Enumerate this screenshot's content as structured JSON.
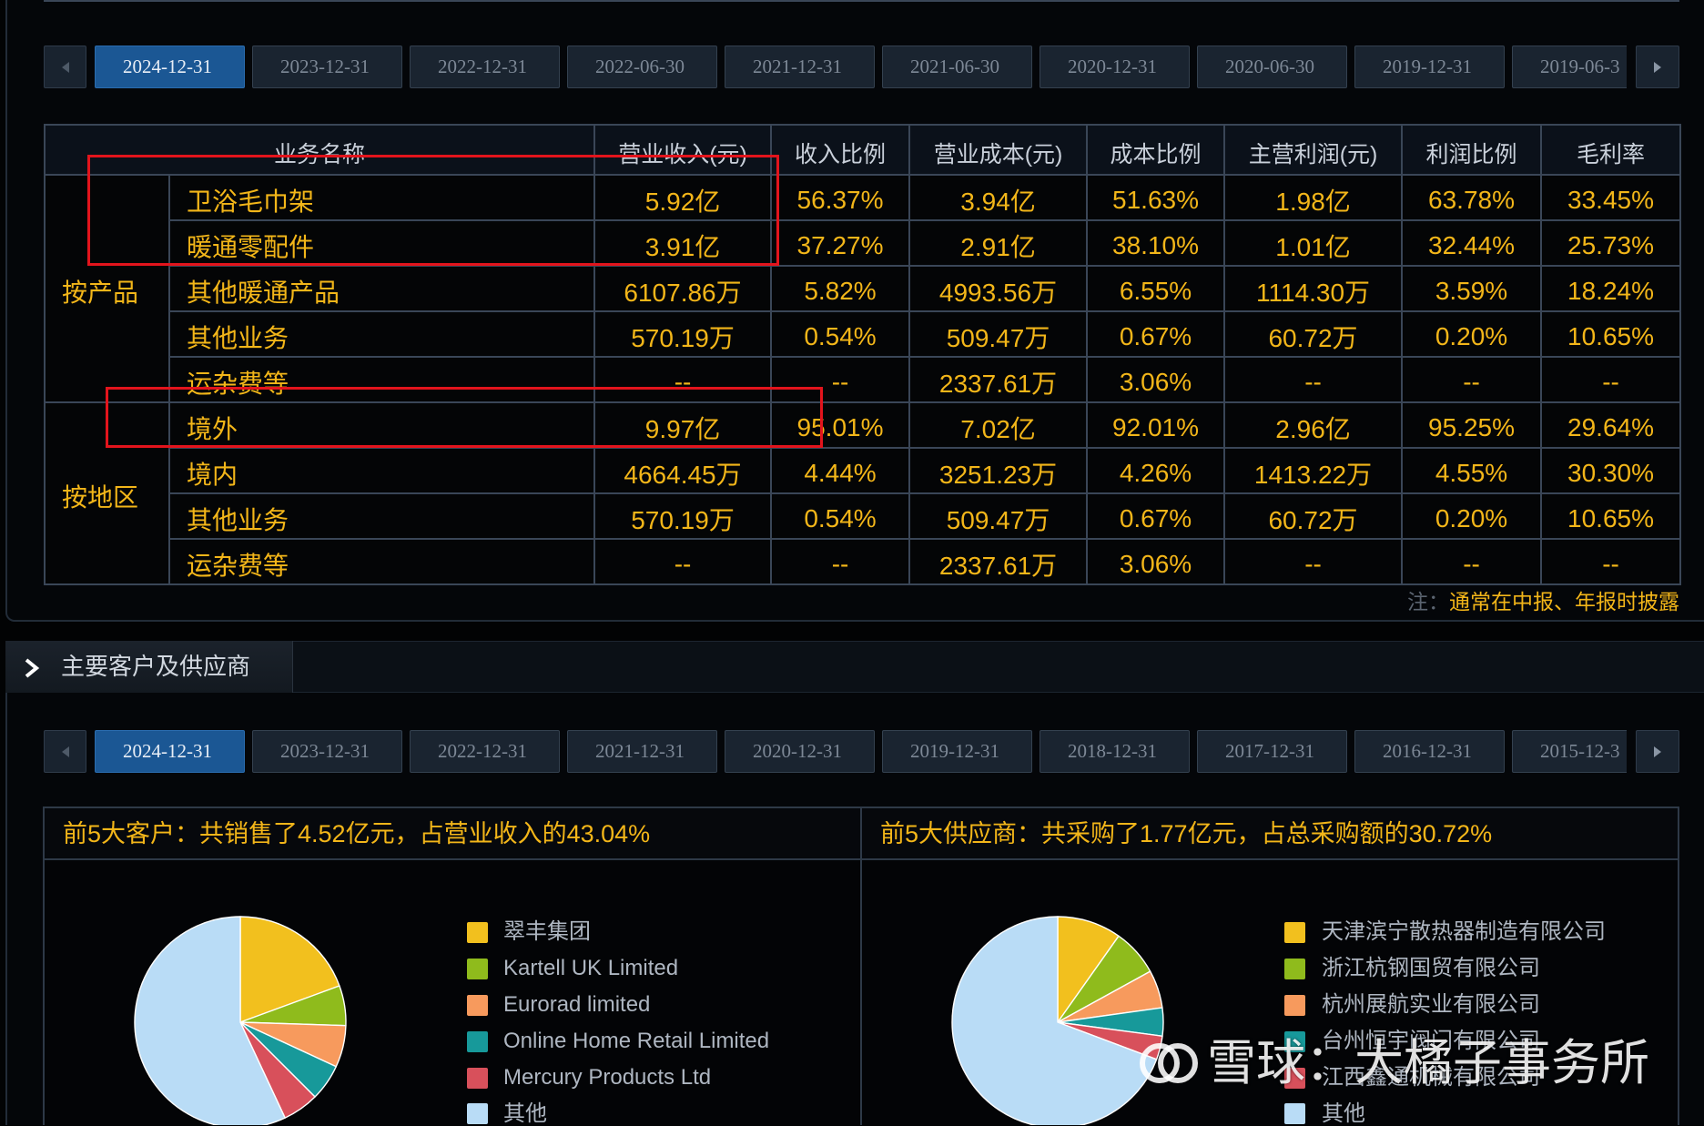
{
  "top_tabs": {
    "dates": [
      "2024-12-31",
      "2023-12-31",
      "2022-12-31",
      "2022-06-30",
      "2021-12-31",
      "2021-06-30",
      "2020-12-31",
      "2020-06-30",
      "2019-12-31",
      "2019-06-3"
    ],
    "active": "2024-12-31"
  },
  "table": {
    "headers": {
      "name": "业务名称",
      "revenue": "营业收入(元)",
      "revenue_ratio": "收入比例",
      "cost": "营业成本(元)",
      "cost_ratio": "成本比例",
      "profit": "主营利润(元)",
      "profit_ratio": "利润比例",
      "gross_margin": "毛利率"
    },
    "groups": [
      {
        "label": "按产品",
        "rows": [
          {
            "name": "卫浴毛巾架",
            "revenue": "5.92亿",
            "revenue_ratio": "56.37%",
            "cost": "3.94亿",
            "cost_ratio": "51.63%",
            "profit": "1.98亿",
            "profit_ratio": "63.78%",
            "gross_margin": "33.45%"
          },
          {
            "name": "暖通零配件",
            "revenue": "3.91亿",
            "revenue_ratio": "37.27%",
            "cost": "2.91亿",
            "cost_ratio": "38.10%",
            "profit": "1.01亿",
            "profit_ratio": "32.44%",
            "gross_margin": "25.73%"
          },
          {
            "name": "其他暖通产品",
            "revenue": "6107.86万",
            "revenue_ratio": "5.82%",
            "cost": "4993.56万",
            "cost_ratio": "6.55%",
            "profit": "1114.30万",
            "profit_ratio": "3.59%",
            "gross_margin": "18.24%"
          },
          {
            "name": "其他业务",
            "revenue": "570.19万",
            "revenue_ratio": "0.54%",
            "cost": "509.47万",
            "cost_ratio": "0.67%",
            "profit": "60.72万",
            "profit_ratio": "0.20%",
            "gross_margin": "10.65%"
          },
          {
            "name": "运杂费等",
            "revenue": "--",
            "revenue_ratio": "--",
            "cost": "2337.61万",
            "cost_ratio": "3.06%",
            "profit": "--",
            "profit_ratio": "--",
            "gross_margin": "--"
          }
        ]
      },
      {
        "label": "按地区",
        "rows": [
          {
            "name": "境外",
            "revenue": "9.97亿",
            "revenue_ratio": "95.01%",
            "cost": "7.02亿",
            "cost_ratio": "92.01%",
            "profit": "2.96亿",
            "profit_ratio": "95.25%",
            "gross_margin": "29.64%"
          },
          {
            "name": "境内",
            "revenue": "4664.45万",
            "revenue_ratio": "4.44%",
            "cost": "3251.23万",
            "cost_ratio": "4.26%",
            "profit": "1413.22万",
            "profit_ratio": "4.55%",
            "gross_margin": "30.30%"
          },
          {
            "name": "其他业务",
            "revenue": "570.19万",
            "revenue_ratio": "0.54%",
            "cost": "509.47万",
            "cost_ratio": "0.67%",
            "profit": "60.72万",
            "profit_ratio": "0.20%",
            "gross_margin": "10.65%"
          },
          {
            "name": "运杂费等",
            "revenue": "--",
            "revenue_ratio": "--",
            "cost": "2337.61万",
            "cost_ratio": "3.06%",
            "profit": "--",
            "profit_ratio": "--",
            "gross_margin": "--"
          }
        ]
      }
    ]
  },
  "note": {
    "prefix": "注：",
    "text": "通常在中报、年报时披露"
  },
  "section": {
    "title": "主要客户及供应商"
  },
  "bottom_tabs": {
    "dates": [
      "2024-12-31",
      "2023-12-31",
      "2022-12-31",
      "2021-12-31",
      "2020-12-31",
      "2019-12-31",
      "2018-12-31",
      "2017-12-31",
      "2016-12-31",
      "2015-12-3"
    ],
    "active": "2024-12-31"
  },
  "chart_data": [
    {
      "type": "pie",
      "title": "前5大客户：共销售了4.52亿元，占营业收入的43.04%",
      "labels": [
        "翠丰集团",
        "Kartell UK Limited",
        "Eurorad limited",
        "Online Home Retail Limited",
        "Mercury Products Ltd",
        "其他"
      ],
      "values": [
        19.4,
        6.1,
        6.4,
        5.6,
        5.54,
        56.96
      ],
      "colors": [
        "#f2c01e",
        "#8fbb1c",
        "#f79a5d",
        "#17999a",
        "#d8505b",
        "#b9dcf6"
      ]
    },
    {
      "type": "pie",
      "title": "前5大供应商：共采购了1.77亿元，占总采购额的30.72%",
      "labels": [
        "天津滨宁散热器制造有限公司",
        "浙江杭钢国贸有限公司",
        "杭州展航实业有限公司",
        "台州恒宇阀门有限公司",
        "江西鑫通机械有限公司",
        "其他"
      ],
      "values": [
        9.8,
        7.2,
        5.8,
        4.3,
        3.62,
        69.28
      ],
      "colors": [
        "#f2c01e",
        "#8fbb1c",
        "#f79a5d",
        "#17999a",
        "#d8505b",
        "#b9dcf6"
      ]
    }
  ],
  "watermark": {
    "text": "雪球：大橘子事务所"
  },
  "icons": {
    "prev": "chevron-left-icon",
    "next": "chevron-right-icon",
    "section": "chevron-right-icon",
    "watermark": "xueqiu-logo-icon"
  },
  "colors": {
    "value_text": "#f3b619",
    "active_tab": "#1b5794",
    "annotation": "#e3141c"
  }
}
